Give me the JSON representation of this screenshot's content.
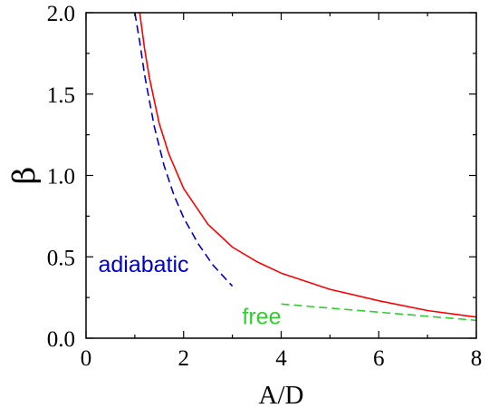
{
  "chart_data": {
    "type": "line",
    "xlabel": "A/D",
    "ylabel": "β",
    "xlim": [
      0,
      8
    ],
    "ylim": [
      0,
      2.0
    ],
    "xticks": [
      0,
      2,
      4,
      6,
      8
    ],
    "xtick_labels": [
      "0",
      "2",
      "4",
      "6",
      "8"
    ],
    "yticks": [
      0,
      0.5,
      1.0,
      1.5,
      2.0
    ],
    "ytick_labels": [
      "0.0",
      "0.5",
      "1.0",
      "1.5",
      "2.0"
    ],
    "grid": false,
    "legend": "none",
    "series": [
      {
        "style": "solid",
        "color": "#ff0000",
        "x": [
          1.1,
          1.2,
          1.3,
          1.5,
          1.7,
          2.0,
          2.5,
          3.0,
          3.5,
          4.0,
          5.0,
          6.0,
          7.0,
          8.0
        ],
        "y": [
          2.0,
          1.78,
          1.6,
          1.32,
          1.13,
          0.92,
          0.7,
          0.56,
          0.47,
          0.4,
          0.3,
          0.23,
          0.17,
          0.13
        ]
      },
      {
        "style": "dashed",
        "color": "#0000cc",
        "x": [
          1.0,
          1.1,
          1.2,
          1.4,
          1.6,
          1.8,
          2.0,
          2.3,
          2.6,
          3.0
        ],
        "y": [
          2.0,
          1.82,
          1.62,
          1.3,
          1.06,
          0.88,
          0.74,
          0.58,
          0.45,
          0.32
        ]
      },
      {
        "style": "dashed",
        "color": "#33cc33",
        "x": [
          4.0,
          5.0,
          6.0,
          7.0,
          8.0
        ],
        "y": [
          0.21,
          0.185,
          0.16,
          0.135,
          0.11
        ]
      }
    ],
    "annotations": [
      {
        "text": "adiabatic",
        "x": 0.25,
        "y": 0.45,
        "color": "#0000cc"
      },
      {
        "text": "free",
        "x": 3.2,
        "y": 0.13,
        "color": "#33cc33"
      }
    ]
  }
}
